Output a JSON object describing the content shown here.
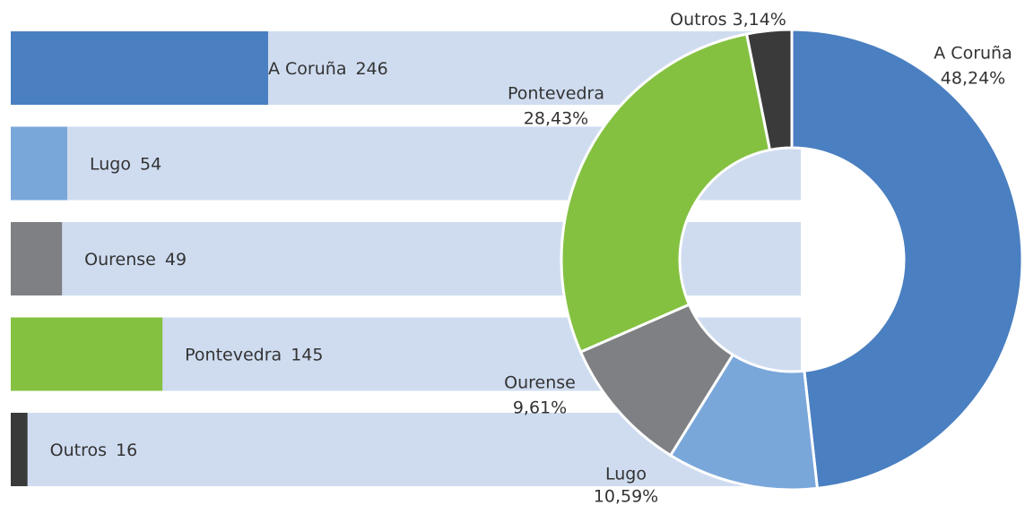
{
  "chart_data": [
    {
      "type": "bar",
      "categories": [
        "A Coruña",
        "Lugo",
        "Ourense",
        "Pontevedra",
        "Outros"
      ],
      "values": [
        246,
        54,
        49,
        145,
        16
      ],
      "colors": [
        "#4a7fc1",
        "#7aa7da",
        "#7f8083",
        "#84c141",
        "#3a3a3a"
      ],
      "background_color": "#cfdcf0"
    },
    {
      "type": "pie",
      "categories": [
        "A Coruña",
        "Lugo",
        "Ourense",
        "Pontevedra",
        "Outros"
      ],
      "values": [
        48.24,
        10.59,
        9.61,
        28.43,
        3.14
      ],
      "value_labels": [
        "48,24%",
        "10,59%",
        "9,61%",
        "28,43%",
        "3,14%"
      ],
      "colors": [
        "#4a7fc1",
        "#7aa7da",
        "#7f8083",
        "#84c141",
        "#3a3a3a"
      ]
    }
  ]
}
